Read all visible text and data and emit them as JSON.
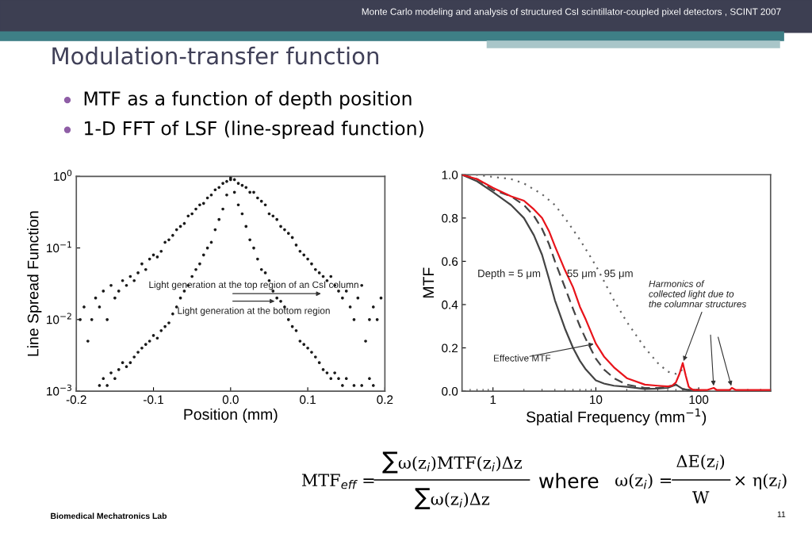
{
  "chart_data": [
    {
      "type": "scatter",
      "title": "Modulation-transfer function",
      "xlabel": "Position (mm)",
      "ylabel": "Line Spread Function",
      "log": "y",
      "marker": "circle",
      "xlim": [
        -0.2,
        0.2
      ],
      "ylim": [
        0.001,
        1
      ],
      "xticks": [
        {
          "value": -0.2,
          "label": "-0.2"
        },
        {
          "value": -0.1,
          "label": "-0.1"
        },
        {
          "value": 0,
          "label": "0.0"
        },
        {
          "value": 0.1,
          "label": "0.1"
        },
        {
          "value": 0.2,
          "label": "0.2"
        }
      ],
      "yticks": [
        {
          "value": 0.001,
          "label": "10$^{−3}$"
        },
        {
          "value": 0.01,
          "label": "10$^{−2}$"
        },
        {
          "value": 0.1,
          "label": "10$^{−1}$"
        },
        {
          "value": 1,
          "label": "10$^{0}$"
        }
      ],
      "series": [
        {
          "color": "#1a1a1a",
          "x": [
            -0.195,
            -0.19,
            -0.185,
            -0.18,
            -0.175,
            -0.17,
            -0.165,
            -0.16,
            -0.155,
            -0.15,
            -0.145,
            -0.14,
            -0.135,
            -0.13,
            -0.125,
            -0.12,
            -0.115,
            -0.11,
            -0.105,
            -0.1,
            -0.095,
            -0.09,
            -0.085,
            -0.08,
            -0.075,
            -0.07,
            -0.065,
            -0.06,
            -0.055,
            -0.05,
            -0.045,
            -0.04,
            -0.035,
            -0.03,
            -0.025,
            -0.02,
            -0.015,
            -0.01,
            -0.005,
            0,
            0.005,
            0.01,
            0.015,
            0.02,
            0.025,
            0.03,
            0.035,
            0.04,
            0.045,
            0.05,
            0.055,
            0.06,
            0.065,
            0.07,
            0.075,
            0.08,
            0.085,
            0.09,
            0.095,
            0.1,
            0.105,
            0.11,
            0.115,
            0.12,
            0.125,
            0.13,
            0.135,
            0.14,
            0.145,
            0.15,
            0.155,
            0.16,
            0.165,
            0.17,
            0.175,
            0.18,
            0.185,
            0.19,
            0.195
          ],
          "values": [
            0.01,
            0.015,
            0.005,
            0.01,
            0.02,
            0.015,
            0.025,
            0.01,
            0.03,
            0.02,
            0.025,
            0.035,
            0.03,
            0.04,
            0.035,
            0.045,
            0.06,
            0.05,
            0.07,
            0.08,
            0.075,
            0.09,
            0.12,
            0.13,
            0.15,
            0.18,
            0.2,
            0.22,
            0.28,
            0.3,
            0.35,
            0.4,
            0.42,
            0.5,
            0.55,
            0.65,
            0.7,
            0.8,
            0.85,
            0.95,
            0.9,
            0.8,
            0.75,
            0.7,
            0.6,
            0.6,
            0.5,
            0.45,
            0.4,
            0.3,
            0.28,
            0.25,
            0.2,
            0.18,
            0.16,
            0.14,
            0.11,
            0.09,
            0.08,
            0.07,
            0.06,
            0.05,
            0.045,
            0.04,
            0.035,
            0.04,
            0.03,
            0.025,
            0.02,
            0.025,
            0.015,
            0.01,
            0.02,
            0.03,
            0.005,
            0.01,
            0.015,
            0.01,
            0.02
          ]
        },
        {
          "color": "#1a1a1a",
          "x": [
            -0.17,
            -0.165,
            -0.16,
            -0.155,
            -0.15,
            -0.145,
            -0.14,
            -0.135,
            -0.13,
            -0.125,
            -0.12,
            -0.115,
            -0.11,
            -0.105,
            -0.1,
            -0.095,
            -0.09,
            -0.085,
            -0.08,
            -0.075,
            -0.07,
            -0.065,
            -0.06,
            -0.055,
            -0.05,
            -0.045,
            -0.04,
            -0.035,
            -0.03,
            -0.025,
            -0.02,
            -0.015,
            -0.01,
            -0.005,
            0,
            0.005,
            0.01,
            0.015,
            0.02,
            0.025,
            0.03,
            0.035,
            0.04,
            0.045,
            0.05,
            0.055,
            0.06,
            0.065,
            0.07,
            0.075,
            0.08,
            0.085,
            0.09,
            0.095,
            0.1,
            0.105,
            0.11,
            0.115,
            0.12,
            0.125,
            0.13,
            0.135,
            0.14,
            0.145,
            0.15,
            0.16,
            0.17,
            0.18,
            0.185
          ],
          "values": [
            0.0012,
            0.0015,
            0.0012,
            0.0018,
            0.0015,
            0.002,
            0.0025,
            0.0022,
            0.0025,
            0.003,
            0.0035,
            0.004,
            0.0045,
            0.005,
            0.006,
            0.0055,
            0.007,
            0.008,
            0.009,
            0.012,
            0.015,
            0.02,
            0.025,
            0.03,
            0.04,
            0.05,
            0.06,
            0.08,
            0.1,
            0.12,
            0.18,
            0.25,
            0.35,
            0.55,
            0.9,
            0.6,
            0.4,
            0.3,
            0.2,
            0.13,
            0.1,
            0.07,
            0.05,
            0.045,
            0.035,
            0.025,
            0.02,
            0.018,
            0.015,
            0.01,
            0.008,
            0.007,
            0.005,
            0.0045,
            0.004,
            0.0035,
            0.003,
            0.0025,
            0.002,
            0.0018,
            0.0015,
            0.0018,
            0.0015,
            0.0012,
            0.0015,
            0.0012,
            0.0012,
            0.0015,
            0.0012
          ]
        }
      ],
      "annotations": [
        "Monte Carlo modeling and analysis of structured CsI scintillator-coupled pixel detectors , SCINT 2007",
        "MTF as a function of depth position",
        "1-D FFT of LSF (line-spread function)",
        "Biomedical Mechatronics Lab",
        "11",
        "MTF$_{eff}$ =",
        "∑ω(z$_{i}$)MTF(z$_{i}$)Δz",
        "∑ω(z$_{i}$)Δz",
        "where",
        "ω(z$_{i}$) =",
        "ΔE(z$_{i}$)",
        "W",
        "× η(z$_{i}$)",
        "Light generation at the top region of an CsI column",
        "Light generation at the bottom region"
      ]
    },
    {
      "type": "line",
      "xlabel": "Spatial Frequency (mm$^{−1}$)",
      "ylabel": "MTF",
      "log": "x",
      "xlim": [
        0.5,
        500
      ],
      "ylim": [
        0,
        1
      ],
      "xticks": [
        1,
        10,
        100
      ],
      "yticks": [
        {
          "value": 0,
          "label": "0.0"
        },
        {
          "value": 0.2,
          "label": "0.2"
        },
        {
          "value": 0.4,
          "label": "0.4"
        },
        {
          "value": 0.6,
          "label": "0.6"
        },
        {
          "value": 0.8,
          "label": "0.8"
        },
        {
          "value": 1,
          "label": "1.0"
        }
      ],
      "series": [
        {
          "color": "#444444",
          "line_style": "solid",
          "x": [
            0.5,
            0.7,
            1,
            1.5,
            2,
            2.5,
            3,
            3.5,
            4,
            5,
            6,
            7,
            8,
            10,
            12,
            15,
            20,
            30,
            40,
            50,
            60,
            70,
            80,
            100
          ],
          "values": [
            1,
            0.97,
            0.92,
            0.86,
            0.8,
            0.72,
            0.63,
            0.52,
            0.42,
            0.29,
            0.2,
            0.14,
            0.1,
            0.05,
            0.035,
            0.025,
            0.02,
            0.01,
            0.012,
            0.015,
            0.03,
            0.01,
            0.005,
            0.005
          ]
        },
        {
          "color": "#444444",
          "line_style": "dashed",
          "x": [
            0.5,
            0.7,
            1,
            1.5,
            2,
            2.5,
            3,
            3.5,
            4,
            5,
            6,
            7,
            8,
            10,
            12,
            15,
            20,
            30,
            40,
            50,
            60,
            70,
            80,
            100
          ],
          "values": [
            1,
            0.98,
            0.93,
            0.9,
            0.86,
            0.81,
            0.75,
            0.68,
            0.6,
            0.48,
            0.38,
            0.3,
            0.24,
            0.15,
            0.1,
            0.06,
            0.03,
            0.015,
            0.015,
            0.02,
            0.03,
            0.01,
            0.005,
            0.005
          ]
        },
        {
          "color": "#666666",
          "line_style": "dotted",
          "x": [
            0.5,
            0.7,
            1,
            1.5,
            2,
            3,
            4,
            5,
            7,
            10,
            15,
            20,
            30,
            40,
            50,
            60,
            70
          ],
          "values": [
            1,
            1,
            0.99,
            0.98,
            0.96,
            0.91,
            0.86,
            0.8,
            0.7,
            0.58,
            0.42,
            0.32,
            0.2,
            0.13,
            0.09,
            0.08,
            0.1
          ]
        },
        {
          "color": "#e8141b",
          "line_style": "solid",
          "x": [
            0.5,
            0.7,
            1,
            1.5,
            2,
            2.5,
            3,
            3.5,
            4,
            5,
            6,
            7,
            8,
            10,
            12,
            15,
            20,
            30,
            40,
            50,
            55,
            60,
            65,
            70,
            75,
            80,
            85,
            90,
            100,
            120,
            140,
            150,
            180,
            200,
            210,
            230,
            300,
            400,
            500
          ],
          "values": [
            1,
            0.98,
            0.94,
            0.9,
            0.88,
            0.84,
            0.8,
            0.74,
            0.67,
            0.56,
            0.48,
            0.39,
            0.33,
            0.22,
            0.16,
            0.11,
            0.06,
            0.03,
            0.025,
            0.022,
            0.025,
            0.04,
            0.08,
            0.13,
            0.07,
            0.02,
            0.01,
            0.005,
            0.005,
            0.005,
            0.015,
            0.005,
            0.005,
            0.005,
            0.015,
            0.005,
            0.005,
            0.005,
            0.005
          ]
        }
      ],
      "annotations": [
        "Depth = 5 μm",
        "55 μm",
        "95 μm",
        {
          "text": "Effective MTF",
          "x": 10,
          "y": 0.22
        },
        {
          "text": "Harmonics of\ncollected light due to\nthe columnar structures",
          "x": 70,
          "y": 0.13
        }
      ]
    }
  ]
}
